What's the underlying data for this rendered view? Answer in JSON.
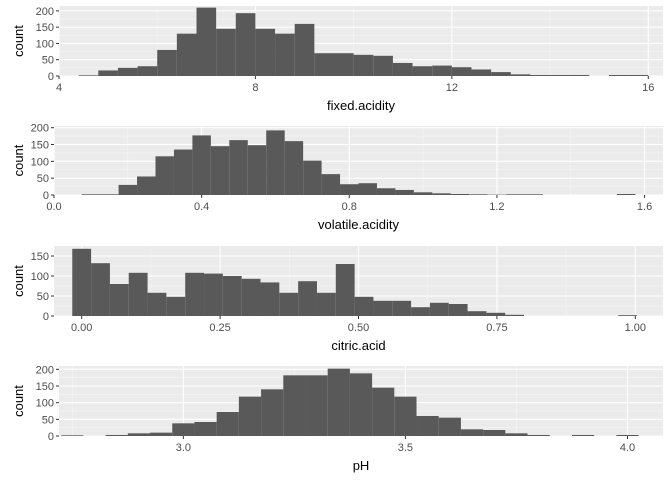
{
  "colors": {
    "panel": "#ebebeb",
    "grid_major": "#ffffff",
    "grid_minor": "#f5f5f5",
    "bar": "#595959",
    "tick_text": "#4d4d4d",
    "title_text": "#000000"
  },
  "chart_data": [
    {
      "type": "bar",
      "histogram": true,
      "title": "",
      "xlabel": "fixed.acidity",
      "ylabel": "count",
      "xlim": [
        4.0,
        16.3
      ],
      "ylim": [
        0,
        215
      ],
      "xticks": [
        4,
        8,
        12,
        16
      ],
      "xtick_labels": [
        "4",
        "8",
        "12",
        "16"
      ],
      "yticks": [
        0,
        50,
        100,
        150,
        200
      ],
      "ytick_labels": [
        "0",
        "50",
        "100",
        "150",
        "200"
      ],
      "x": [
        4.6,
        5.0,
        5.4,
        5.8,
        6.2,
        6.6,
        7.0,
        7.4,
        7.8,
        8.2,
        8.6,
        9.0,
        9.4,
        9.8,
        10.2,
        10.6,
        11.0,
        11.4,
        11.8,
        12.2,
        12.6,
        13.0,
        13.4,
        13.8,
        14.2,
        14.6,
        15.0,
        15.4,
        15.8
      ],
      "bin_width": 0.4,
      "values": [
        2,
        17,
        25,
        30,
        80,
        130,
        210,
        145,
        193,
        145,
        130,
        160,
        70,
        70,
        65,
        62,
        40,
        30,
        32,
        27,
        20,
        12,
        5,
        3,
        3,
        3,
        0,
        3,
        3
      ]
    },
    {
      "type": "bar",
      "histogram": true,
      "title": "",
      "xlabel": "volatile.acidity",
      "ylabel": "count",
      "xlim": [
        0.0,
        1.65
      ],
      "ylim": [
        0,
        205
      ],
      "xticks": [
        0.0,
        0.4,
        0.8,
        1.2,
        1.6
      ],
      "xtick_labels": [
        "0.0",
        "0.4",
        "0.8",
        "1.2",
        "1.6"
      ],
      "yticks": [
        0,
        50,
        100,
        150,
        200
      ],
      "ytick_labels": [
        "0",
        "50",
        "100",
        "150",
        "200"
      ],
      "x": [
        0.1,
        0.15,
        0.2,
        0.25,
        0.3,
        0.35,
        0.4,
        0.45,
        0.5,
        0.55,
        0.6,
        0.65,
        0.7,
        0.75,
        0.8,
        0.85,
        0.9,
        0.95,
        1.0,
        1.05,
        1.1,
        1.15,
        1.2,
        1.25,
        1.3,
        1.35,
        1.4,
        1.45,
        1.5,
        1.55
      ],
      "bin_width": 0.05,
      "values": [
        2,
        2,
        30,
        55,
        115,
        135,
        177,
        145,
        163,
        148,
        192,
        160,
        102,
        62,
        32,
        35,
        20,
        15,
        8,
        5,
        3,
        2,
        1,
        2,
        2,
        0,
        0,
        0,
        0,
        3
      ]
    },
    {
      "type": "bar",
      "histogram": true,
      "title": "",
      "xlabel": "citric.acid",
      "ylabel": "count",
      "xlim": [
        -0.05,
        1.05
      ],
      "ylim": [
        0,
        175
      ],
      "xticks": [
        0.0,
        0.25,
        0.5,
        0.75,
        1.0
      ],
      "xtick_labels": [
        "0.00",
        "0.25",
        "0.50",
        "0.75",
        "1.00"
      ],
      "yticks": [
        0,
        50,
        100,
        150
      ],
      "ytick_labels": [
        "0",
        "50",
        "100",
        "150"
      ],
      "x": [
        0.0,
        0.034,
        0.068,
        0.102,
        0.136,
        0.17,
        0.204,
        0.238,
        0.272,
        0.306,
        0.34,
        0.374,
        0.408,
        0.442,
        0.476,
        0.51,
        0.544,
        0.578,
        0.612,
        0.646,
        0.68,
        0.714,
        0.748,
        0.782,
        0.816,
        0.85,
        0.884,
        0.918,
        0.952,
        0.986
      ],
      "bin_width": 0.034,
      "values": [
        168,
        132,
        80,
        108,
        58,
        48,
        108,
        106,
        100,
        93,
        84,
        58,
        87,
        58,
        130,
        48,
        38,
        38,
        22,
        33,
        30,
        12,
        8,
        3,
        0,
        0,
        0,
        0,
        0,
        2
      ]
    },
    {
      "type": "bar",
      "histogram": true,
      "title": "",
      "xlabel": "pH",
      "ylabel": "count",
      "xlim": [
        2.72,
        4.08
      ],
      "ylim": [
        0,
        210
      ],
      "xticks": [
        3.0,
        3.5,
        4.0
      ],
      "xtick_labels": [
        "3.0",
        "3.5",
        "4.0"
      ],
      "yticks": [
        0,
        50,
        100,
        150,
        200
      ],
      "ytick_labels": [
        "0",
        "50",
        "100",
        "150",
        "200"
      ],
      "x": [
        2.75,
        2.8,
        2.85,
        2.9,
        2.95,
        3.0,
        3.05,
        3.1,
        3.15,
        3.2,
        3.25,
        3.3,
        3.35,
        3.4,
        3.45,
        3.5,
        3.55,
        3.6,
        3.65,
        3.7,
        3.75,
        3.8,
        3.85,
        3.9,
        3.95,
        4.0
      ],
      "bin_width": 0.05,
      "values": [
        2,
        0,
        3,
        8,
        10,
        38,
        42,
        72,
        118,
        140,
        182,
        182,
        202,
        188,
        145,
        118,
        60,
        55,
        20,
        18,
        8,
        3,
        0,
        3,
        0,
        3
      ]
    }
  ]
}
